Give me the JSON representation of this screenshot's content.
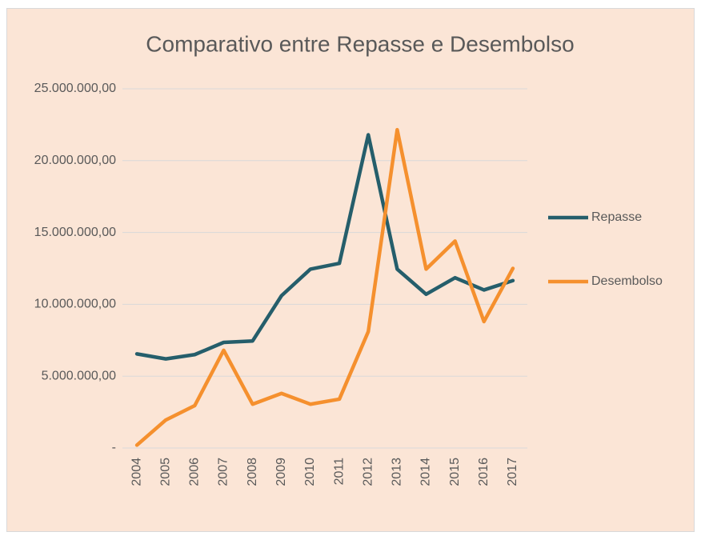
{
  "chart_data": {
    "type": "line",
    "title": "Comparativo entre Repasse e Desembolso",
    "categories": [
      "2004",
      "2005",
      "2006",
      "2007",
      "2008",
      "2009",
      "2010",
      "2011",
      "2012",
      "2013",
      "2014",
      "2015",
      "2016",
      "2017"
    ],
    "series": [
      {
        "name": "Repasse",
        "color": "#255e6b",
        "values": [
          6550000,
          6200000,
          6500000,
          7350000,
          7450000,
          10600000,
          12450000,
          12850000,
          21800000,
          12450000,
          10700000,
          11850000,
          11000000,
          11650000
        ]
      },
      {
        "name": "Desembolso",
        "color": "#f5902e",
        "values": [
          200000,
          1950000,
          2950000,
          6800000,
          3050000,
          3800000,
          3050000,
          3400000,
          8100000,
          22150000,
          12450000,
          14400000,
          8800000,
          12500000
        ]
      }
    ],
    "ylim": [
      0,
      25000000
    ],
    "yticks": [
      {
        "value": 0,
        "label": "-"
      },
      {
        "value": 5000000,
        "label": "5.000.000,00"
      },
      {
        "value": 10000000,
        "label": "10.000.000,00"
      },
      {
        "value": 15000000,
        "label": "15.000.000,00"
      },
      {
        "value": 20000000,
        "label": "20.000.000,00"
      },
      {
        "value": 25000000,
        "label": "25.000.000,00"
      }
    ],
    "grid": true,
    "legend": "right",
    "background": "#fbe5d6"
  }
}
